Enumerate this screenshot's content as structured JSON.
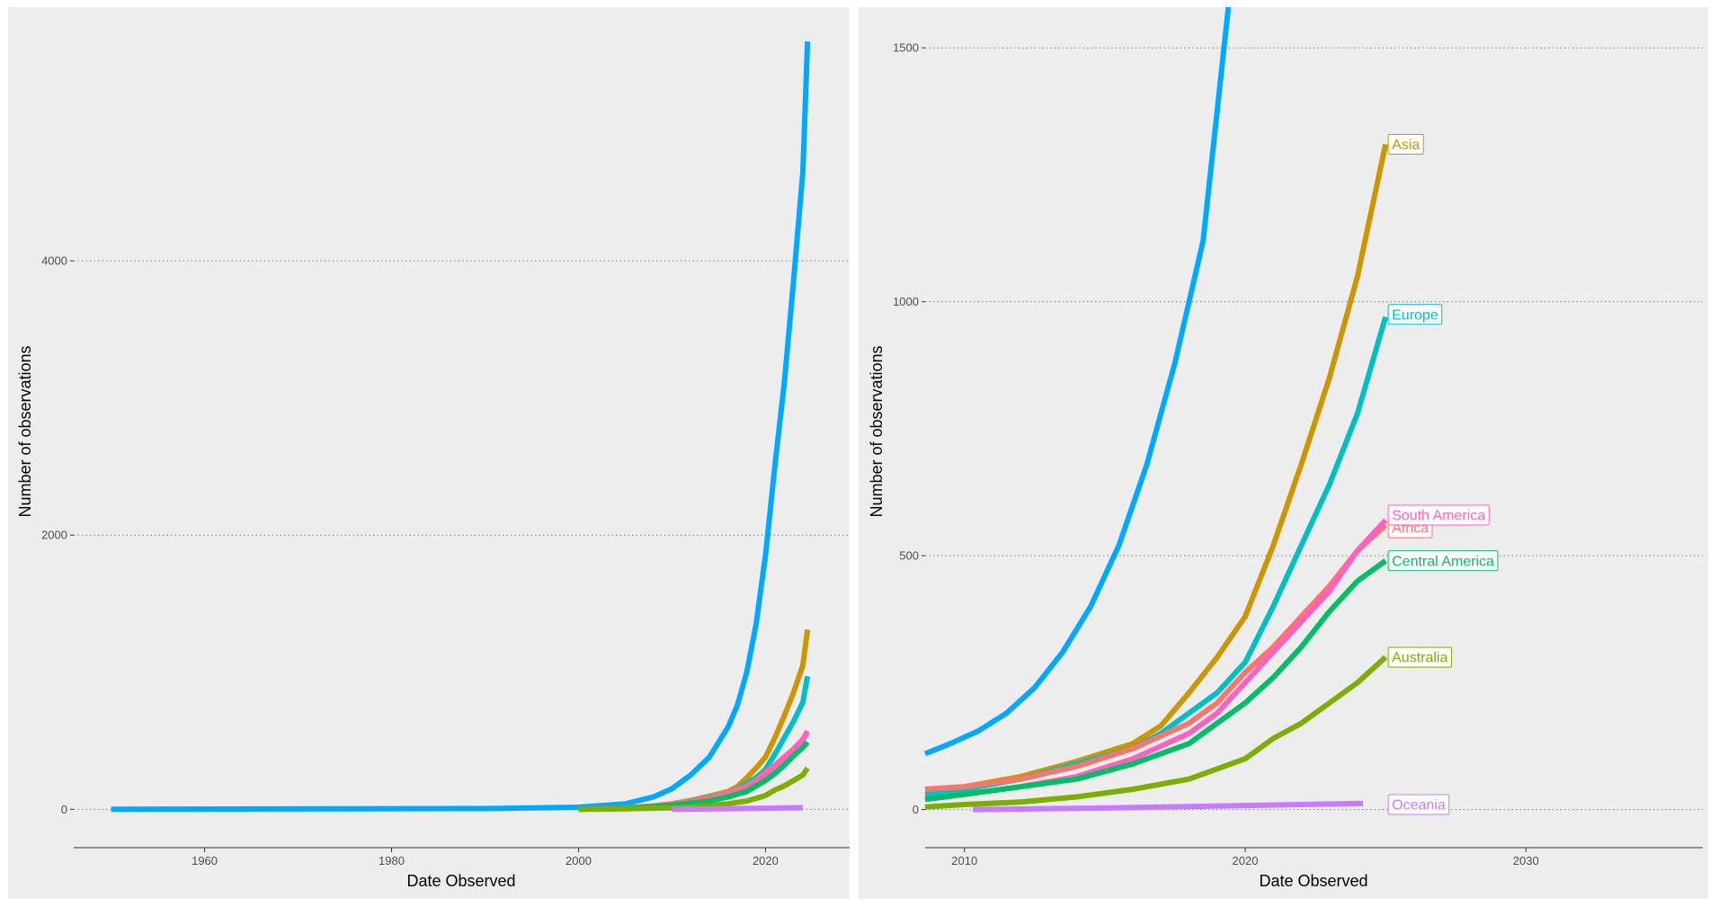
{
  "chart_data": [
    {
      "type": "line",
      "xlabel": "Date Observed",
      "ylabel": "Number of observations",
      "xlim": [
        1946,
        2029
      ],
      "ylim": [
        -280,
        5850
      ],
      "x_ticks": [
        1960,
        1980,
        2000,
        2020
      ],
      "y_ticks": [
        0,
        2000,
        4000
      ],
      "grid": "horizontal dotted",
      "legend": "none",
      "series": [
        {
          "color": "#00A9FF",
          "x": [
            1950,
            1990,
            2000,
            2005,
            2008,
            2010,
            2012,
            2014,
            2016,
            2017,
            2018,
            2019,
            2020,
            2021,
            2022,
            2023,
            2024,
            2024.5
          ],
          "y": [
            0,
            5,
            15,
            40,
            90,
            150,
            250,
            380,
            600,
            760,
            1000,
            1350,
            1850,
            2500,
            3100,
            3850,
            4650,
            5600
          ]
        },
        {
          "color": "#CD9600",
          "x": [
            2000,
            2005,
            2008,
            2010,
            2012,
            2014,
            2016,
            2017,
            2018,
            2019,
            2020,
            2021,
            2022,
            2023,
            2024,
            2024.5
          ],
          "y": [
            0,
            10,
            20,
            40,
            65,
            95,
            130,
            165,
            230,
            300,
            380,
            520,
            680,
            850,
            1050,
            1310
          ]
        },
        {
          "color": "#00BFC4",
          "x": [
            2000,
            2005,
            2008,
            2010,
            2012,
            2014,
            2016,
            2017,
            2018,
            2019,
            2020,
            2021,
            2022,
            2023,
            2024,
            2024.5
          ],
          "y": [
            0,
            10,
            20,
            40,
            60,
            90,
            120,
            150,
            190,
            230,
            290,
            400,
            520,
            640,
            780,
            970
          ]
        },
        {
          "color": "#F8766D",
          "x": [
            2000,
            2005,
            2008,
            2010,
            2012,
            2014,
            2016,
            2018,
            2019,
            2020,
            2021,
            2022,
            2023,
            2024,
            2024.5
          ],
          "y": [
            0,
            10,
            25,
            40,
            60,
            85,
            120,
            170,
            210,
            270,
            320,
            380,
            440,
            510,
            560
          ]
        },
        {
          "color": "#FF61C3",
          "x": [
            2000,
            2005,
            2008,
            2010,
            2012,
            2014,
            2016,
            2018,
            2019,
            2020,
            2021,
            2022,
            2023,
            2024,
            2024.5
          ],
          "y": [
            0,
            8,
            18,
            30,
            45,
            65,
            100,
            150,
            190,
            250,
            310,
            370,
            430,
            510,
            570
          ]
        },
        {
          "color": "#00BE67",
          "x": [
            2000,
            2005,
            2008,
            2010,
            2012,
            2014,
            2016,
            2018,
            2019,
            2020,
            2021,
            2022,
            2023,
            2024,
            2024.5
          ],
          "y": [
            0,
            8,
            20,
            30,
            45,
            60,
            90,
            130,
            170,
            210,
            260,
            320,
            390,
            450,
            490
          ]
        },
        {
          "color": "#7CAE00",
          "x": [
            2000,
            2005,
            2008,
            2010,
            2012,
            2014,
            2016,
            2018,
            2020,
            2021,
            2022,
            2023,
            2024,
            2024.5
          ],
          "y": [
            0,
            3,
            8,
            10,
            15,
            25,
            40,
            60,
            100,
            140,
            170,
            210,
            250,
            300
          ]
        },
        {
          "color": "#C77CFF",
          "x": [
            2010,
            2015,
            2020,
            2024
          ],
          "y": [
            0,
            3,
            8,
            12
          ]
        }
      ]
    },
    {
      "type": "line",
      "xlabel": "Date Observed",
      "ylabel": "Number of observations",
      "xlim": [
        2008.6,
        2036.3
      ],
      "ylim": [
        -75,
        1580
      ],
      "x_ticks": [
        2010,
        2020,
        2030
      ],
      "y_ticks": [
        0,
        500,
        1000,
        1500
      ],
      "grid": "horizontal dotted",
      "legend": "direct end labels",
      "series": [
        {
          "color": "#00A9FF",
          "x": [
            2008.6,
            2009.5,
            2010.5,
            2011.5,
            2012.5,
            2013.5,
            2014.5,
            2015.5,
            2016.5,
            2017.5,
            2018.5,
            2019.4
          ],
          "y": [
            110,
            130,
            155,
            190,
            240,
            310,
            400,
            520,
            680,
            880,
            1120,
            1580
          ]
        },
        {
          "color": "#CD9600",
          "x": [
            2008.6,
            2010,
            2012,
            2014,
            2016,
            2017,
            2018,
            2019,
            2020,
            2021,
            2022,
            2023,
            2024,
            2025
          ],
          "y": [
            40,
            45,
            65,
            95,
            130,
            165,
            230,
            300,
            380,
            520,
            680,
            850,
            1050,
            1310
          ]
        },
        {
          "color": "#00BFC4",
          "x": [
            2008.6,
            2010,
            2012,
            2014,
            2016,
            2017,
            2018,
            2019,
            2020,
            2021,
            2022,
            2023,
            2024,
            2025
          ],
          "y": [
            30,
            40,
            60,
            90,
            120,
            150,
            190,
            230,
            290,
            400,
            520,
            640,
            780,
            970
          ]
        },
        {
          "color": "#F8766D",
          "x": [
            2008.6,
            2010,
            2012,
            2014,
            2016,
            2018,
            2019,
            2020,
            2021,
            2022,
            2023,
            2024,
            2025
          ],
          "y": [
            40,
            45,
            60,
            85,
            120,
            170,
            210,
            270,
            320,
            380,
            440,
            510,
            560
          ]
        },
        {
          "color": "#FF61C3",
          "x": [
            2008.6,
            2010,
            2012,
            2014,
            2016,
            2018,
            2019,
            2020,
            2021,
            2022,
            2023,
            2024,
            2025
          ],
          "y": [
            20,
            30,
            45,
            65,
            100,
            150,
            190,
            250,
            310,
            370,
            430,
            510,
            570
          ]
        },
        {
          "color": "#00BE67",
          "x": [
            2008.6,
            2010,
            2012,
            2014,
            2016,
            2018,
            2019,
            2020,
            2021,
            2022,
            2023,
            2024,
            2025
          ],
          "y": [
            20,
            30,
            45,
            60,
            90,
            130,
            170,
            210,
            260,
            320,
            390,
            450,
            490
          ]
        },
        {
          "color": "#7CAE00",
          "x": [
            2008.6,
            2010,
            2012,
            2014,
            2016,
            2018,
            2020,
            2021,
            2022,
            2023,
            2024,
            2025
          ],
          "y": [
            5,
            10,
            15,
            25,
            40,
            60,
            100,
            140,
            170,
            210,
            250,
            300
          ]
        },
        {
          "color": "#C77CFF",
          "x": [
            2010.3,
            2015,
            2020,
            2024.2
          ],
          "y": [
            0,
            3,
            8,
            12
          ]
        }
      ],
      "end_labels": [
        {
          "text": "Asia",
          "color": "#CD9600",
          "x": 2025,
          "y": 1310
        },
        {
          "text": "Europe",
          "color": "#00BFC4",
          "x": 2025,
          "y": 975
        },
        {
          "text": "Africa",
          "color": "#F8766D",
          "x": 2025,
          "y": 555
        },
        {
          "text": "South America",
          "color": "#FF61C3",
          "x": 2025,
          "y": 580
        },
        {
          "text": "Central America",
          "color": "#00BE67",
          "x": 2025,
          "y": 490
        },
        {
          "text": "Australia",
          "color": "#7CAE00",
          "x": 2025,
          "y": 300
        },
        {
          "text": "Oceania",
          "color": "#C77CFF",
          "x": 2025,
          "y": 10
        }
      ]
    }
  ]
}
